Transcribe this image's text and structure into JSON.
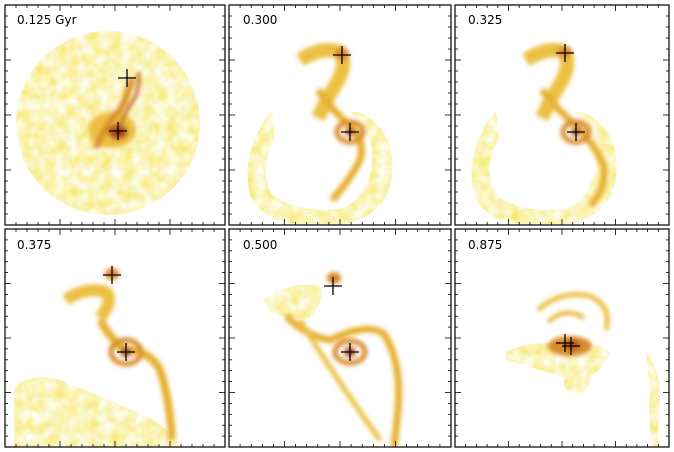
{
  "figure": {
    "panels": [
      {
        "label": "0.125 Gyr"
      },
      {
        "label": "0.300"
      },
      {
        "label": "0.325"
      },
      {
        "label": "0.375"
      },
      {
        "label": "0.500"
      },
      {
        "label": "0.875"
      }
    ]
  },
  "colors": {
    "pale": "#f7ee6a",
    "yellow": "#f2d44a",
    "gold": "#e6b033",
    "orange": "#d98a2a",
    "rust": "#b8561e",
    "dark": "#7a2e12",
    "frame": "#000000",
    "background": "#ffffff"
  }
}
